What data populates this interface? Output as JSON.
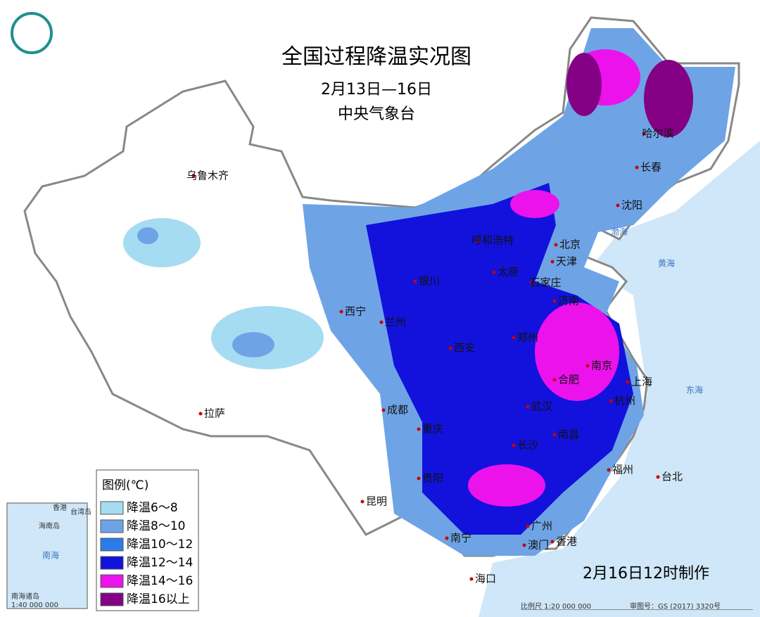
{
  "header": {
    "title": "全国过程降温实况图",
    "date": "2月13日—16日",
    "agency": "中央气象台"
  },
  "cities": [
    "乌鲁木齐",
    "拉萨",
    "西宁",
    "兰州",
    "银川",
    "呼和浩特",
    "北京",
    "天津",
    "太原",
    "石家庄",
    "济南",
    "郑州",
    "西安",
    "成都",
    "重庆",
    "贵阳",
    "昆明",
    "南宁",
    "海口",
    "广州",
    "澳门",
    "香港",
    "长沙",
    "武汉",
    "南昌",
    "合肥",
    "南京",
    "上海",
    "杭州",
    "福州",
    "台北",
    "哈尔滨",
    "长春",
    "沈阳"
  ],
  "seas": [
    "渤海",
    "黄海",
    "东海",
    "南海"
  ],
  "legend": {
    "title": "图例(℃)",
    "items": [
      {
        "label": "降温6～8",
        "color": "#a6dcf2"
      },
      {
        "label": "降温8～10",
        "color": "#6ea4e6"
      },
      {
        "label": "降温10～12",
        "color": "#2c7be8"
      },
      {
        "label": "降温12～14",
        "color": "#1212dc"
      },
      {
        "label": "降温14～16",
        "color": "#ec12ec"
      },
      {
        "label": "降温16以上",
        "color": "#840084"
      }
    ]
  },
  "inset": {
    "title": "南海诸岛",
    "scale": "1:40 000 000",
    "labels": [
      "海南岛",
      "香港",
      "台湾岛",
      "南海"
    ]
  },
  "footer": {
    "made": "2月16日12时制作",
    "scale": "比例尺 1:20 000 000",
    "review": "审图号：GS (2017) 3320号"
  }
}
